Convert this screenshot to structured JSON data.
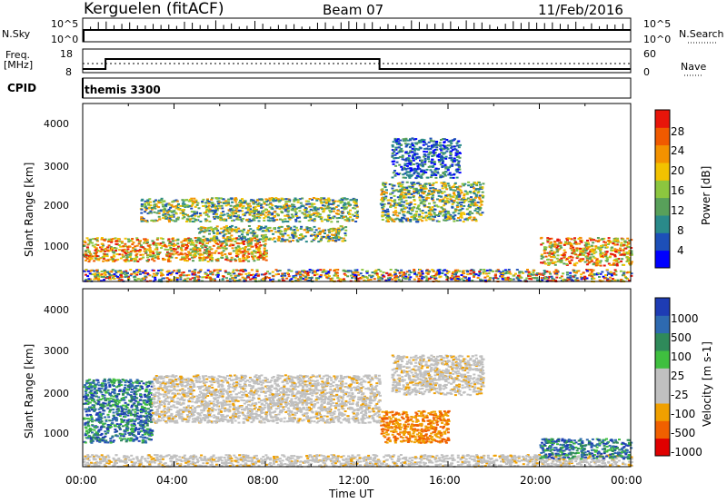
{
  "header": {
    "station": "Kerguelen (fitACF)",
    "beam": "Beam 07",
    "date": "11/Feb/2016"
  },
  "nsky_panel": {
    "left_label": "N.Sky",
    "left_ticks": [
      "10^5",
      "10^0"
    ],
    "right_ticks": [
      "10^5",
      "10^0"
    ],
    "right_label": "N.Search"
  },
  "freq_panel": {
    "left_label_1": "Freq.",
    "left_label_2": "[MHz]",
    "left_ticks": [
      "18",
      "8"
    ],
    "right_ticks": [
      "60",
      "0"
    ],
    "right_label": "Nave"
  },
  "cpid_panel": {
    "label": "CPID",
    "program": "themis 3300"
  },
  "chart_data": [
    {
      "type": "heatmap",
      "name": "power",
      "ylabel": "Slant Range [km]",
      "yticks": [
        "4000",
        "3000",
        "2000",
        "1000"
      ],
      "ylim": [
        180,
        4650
      ],
      "colorbar_label": "Power [dB]",
      "colorbar_ticks": [
        "28",
        "24",
        "20",
        "16",
        "12",
        "8",
        "4"
      ],
      "colorbar_colors": [
        "#0000ff",
        "#1d4fb8",
        "#2a8a8a",
        "#58a05a",
        "#8cc63f",
        "#f2c200",
        "#f39200",
        "#f05a00",
        "#e8150a"
      ],
      "bands": [
        {
          "label": "near range echoes",
          "x": [
            0.0,
            24.0
          ],
          "y": [
            200,
            500
          ],
          "level": "mixed"
        },
        {
          "label": "lower band",
          "x": [
            0.0,
            8.0
          ],
          "y": [
            700,
            1300
          ],
          "level": "high"
        },
        {
          "label": "upper band",
          "x": [
            2.5,
            12.0
          ],
          "y": [
            1700,
            2300
          ],
          "level": "medium"
        },
        {
          "label": "mid band",
          "x": [
            5.0,
            11.5
          ],
          "y": [
            1200,
            1600
          ],
          "level": "medium"
        },
        {
          "label": "post 13UT band",
          "x": [
            13.0,
            17.5
          ],
          "y": [
            1700,
            2700
          ],
          "level": "medium"
        },
        {
          "label": "high range arc",
          "x": [
            13.5,
            16.5
          ],
          "y": [
            2800,
            3800
          ],
          "level": "low"
        },
        {
          "label": "evening echoes",
          "x": [
            20.0,
            24.0
          ],
          "y": [
            600,
            1300
          ],
          "level": "high"
        }
      ]
    },
    {
      "type": "heatmap",
      "name": "velocity",
      "ylabel": "Slant Range [km]",
      "yticks": [
        "4000",
        "3000",
        "2000",
        "1000"
      ],
      "ylim": [
        180,
        4650
      ],
      "colorbar_label": "Velocity [m s-1]",
      "colorbar_ticks": [
        "1000",
        "500",
        "100",
        "25",
        "-25",
        "-100",
        "-500",
        "-1000"
      ],
      "colorbar_colors": [
        "#1e3cb4",
        "#2e6ab0",
        "#2f8a5a",
        "#3fbf3f",
        "#c0c0c0",
        "#c0c0c0",
        "#f0a000",
        "#f06000",
        "#e00000"
      ],
      "bands": [
        {
          "label": "near range",
          "x": [
            0.0,
            24.0
          ],
          "y": [
            200,
            500
          ],
          "level": "slow"
        },
        {
          "label": "early green/blue",
          "x": [
            0.0,
            3.0
          ],
          "y": [
            800,
            2400
          ],
          "level": "positive"
        },
        {
          "label": "grey ground scatter",
          "x": [
            3.0,
            13.0
          ],
          "y": [
            1300,
            2500
          ],
          "level": "slow"
        },
        {
          "label": "orange patch",
          "x": [
            13.0,
            16.0
          ],
          "y": [
            800,
            1600
          ],
          "level": "negative"
        },
        {
          "label": "upper grey",
          "x": [
            13.5,
            17.5
          ],
          "y": [
            2000,
            3000
          ],
          "level": "slow"
        },
        {
          "label": "evening green",
          "x": [
            20.0,
            24.0
          ],
          "y": [
            400,
            900
          ],
          "level": "positive"
        }
      ]
    }
  ],
  "x_axis": {
    "label": "Time UT",
    "ticks": [
      "00:00",
      "04:00",
      "08:00",
      "12:00",
      "16:00",
      "20:00",
      "00:00"
    ],
    "range_hours": [
      0,
      24
    ]
  }
}
